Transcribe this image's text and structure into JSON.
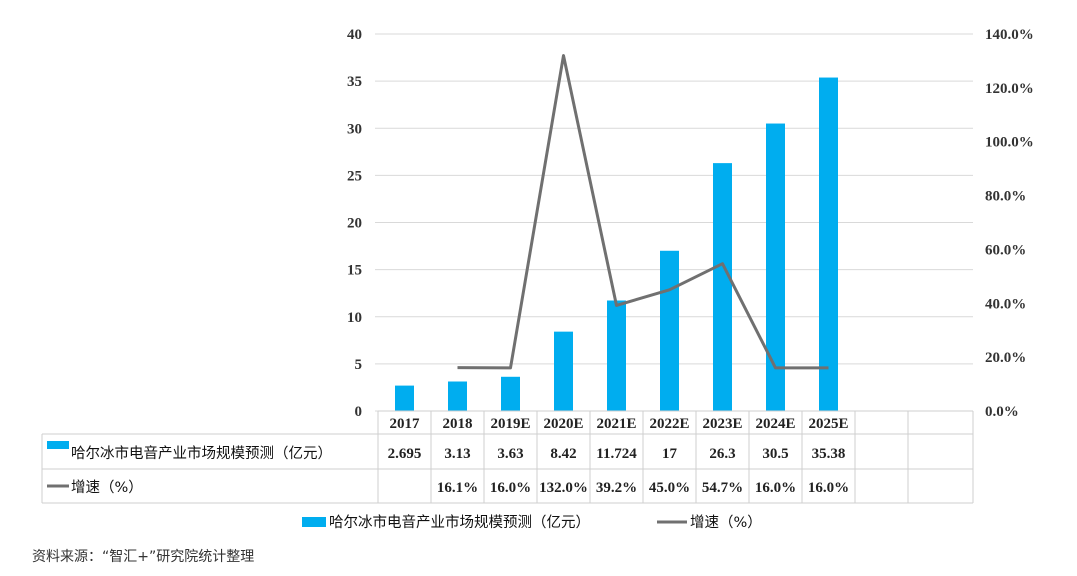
{
  "chart_data": {
    "type": "bar",
    "categories": [
      "2017",
      "2018",
      "2019E",
      "2020E",
      "2021E",
      "2022E",
      "2023E",
      "2024E",
      "2025E"
    ],
    "series": [
      {
        "name": "哈尔冰市电音产业市场规模预测（亿元）",
        "type": "bar",
        "axis": "left",
        "color": "#00ADEF",
        "values": [
          2.695,
          3.13,
          3.63,
          8.42,
          11.724,
          17,
          26.3,
          30.5,
          35.38
        ],
        "labels": [
          "2.695",
          "3.13",
          "3.63",
          "8.42",
          "11.724",
          "17",
          "26.3",
          "30.5",
          "35.38"
        ]
      },
      {
        "name": "增速（%）",
        "type": "line",
        "axis": "right",
        "color": "#707070",
        "values": [
          null,
          16.1,
          16.0,
          132.0,
          39.2,
          45.0,
          54.7,
          16.0,
          16.0
        ],
        "labels": [
          "",
          "16.1%",
          "16.0%",
          "132.0%",
          "39.2%",
          "45.0%",
          "54.7%",
          "16.0%",
          "16.0%"
        ]
      }
    ],
    "y_left": {
      "min": 0,
      "max": 40,
      "step": 5,
      "ticks": [
        "0",
        "5",
        "10",
        "15",
        "20",
        "25",
        "30",
        "35",
        "40"
      ]
    },
    "y_right": {
      "min": 0,
      "max": 140,
      "step": 20,
      "ticks": [
        "0.0%",
        "20.0%",
        "40.0%",
        "60.0%",
        "80.0%",
        "100.0%",
        "120.0%",
        "140.0%"
      ]
    },
    "grid": true,
    "data_table": true,
    "legend_position": "bottom"
  },
  "source_note": "资料来源：“智汇+”研究院统计整理"
}
